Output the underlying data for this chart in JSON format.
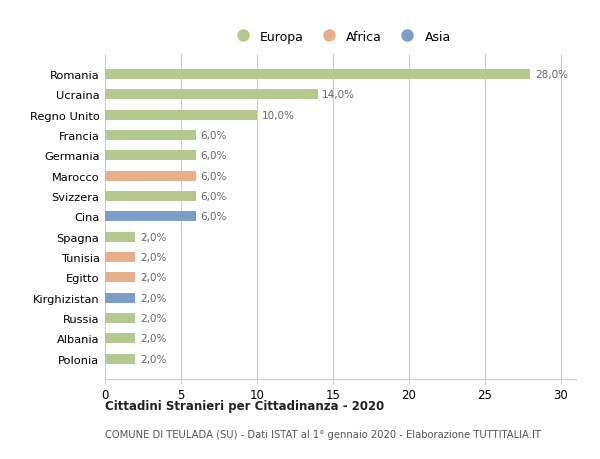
{
  "countries": [
    "Romania",
    "Ucraina",
    "Regno Unito",
    "Francia",
    "Germania",
    "Marocco",
    "Svizzera",
    "Cina",
    "Spagna",
    "Tunisia",
    "Egitto",
    "Kirghizistan",
    "Russia",
    "Albania",
    "Polonia"
  ],
  "values": [
    28.0,
    14.0,
    10.0,
    6.0,
    6.0,
    6.0,
    6.0,
    6.0,
    2.0,
    2.0,
    2.0,
    2.0,
    2.0,
    2.0,
    2.0
  ],
  "continents": [
    "Europa",
    "Europa",
    "Europa",
    "Europa",
    "Europa",
    "Africa",
    "Europa",
    "Asia",
    "Europa",
    "Africa",
    "Africa",
    "Asia",
    "Europa",
    "Europa",
    "Europa"
  ],
  "colors": {
    "Europa": "#b5c98e",
    "Africa": "#e8b08a",
    "Asia": "#7b9ec7"
  },
  "legend_labels": [
    "Europa",
    "Africa",
    "Asia"
  ],
  "title": "Cittadini Stranieri per Cittadinanza - 2020",
  "subtitle": "COMUNE DI TEULADA (SU) - Dati ISTAT al 1° gennaio 2020 - Elaborazione TUTTITALIA.IT",
  "xlim": [
    0,
    31
  ],
  "xticks": [
    0,
    5,
    10,
    15,
    20,
    25,
    30
  ],
  "bar_height": 0.5,
  "background_color": "#ffffff",
  "grid_color": "#cccccc"
}
